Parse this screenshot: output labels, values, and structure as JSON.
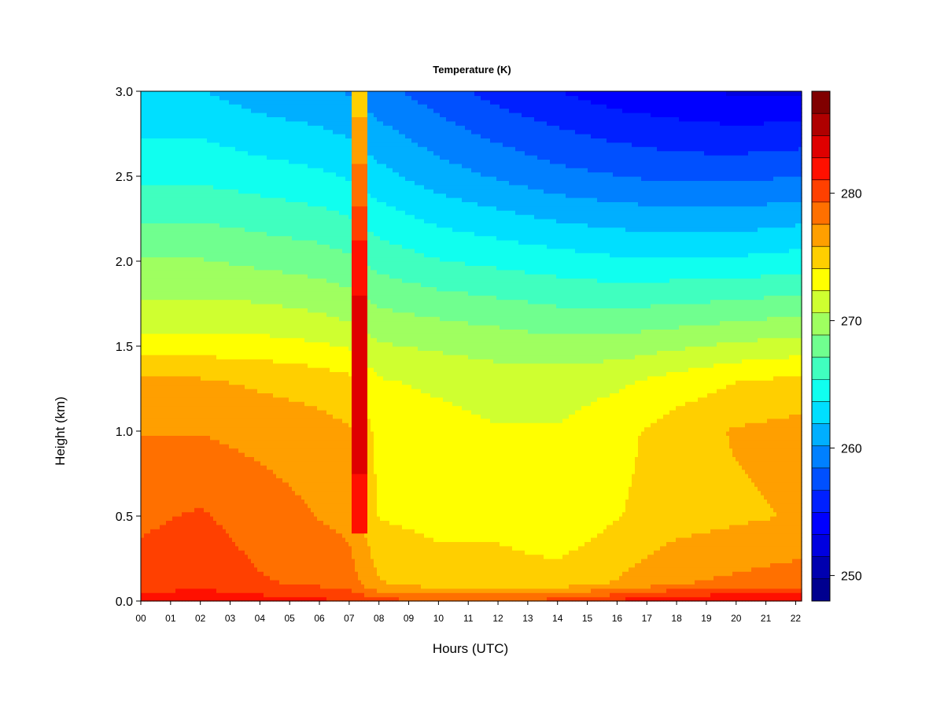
{
  "chart_data": {
    "type": "heatmap",
    "title": "Temperature (K)",
    "xlabel": "Hours (UTC)",
    "ylabel": "Height (km)",
    "x_ticks": [
      "00",
      "01",
      "02",
      "03",
      "04",
      "05",
      "06",
      "07",
      "08",
      "09",
      "10",
      "11",
      "12",
      "13",
      "14",
      "15",
      "16",
      "17",
      "18",
      "19",
      "20",
      "21",
      "22"
    ],
    "x_range": [
      0,
      22.2
    ],
    "y_ticks": [
      "0.0",
      "0.5",
      "1.0",
      "1.5",
      "2.0",
      "2.5",
      "3.0"
    ],
    "y_range": [
      0,
      3
    ],
    "colorbar": {
      "range": [
        248,
        288
      ],
      "step": 2,
      "ticks": [
        "250",
        "260",
        "270",
        "280"
      ],
      "colors": [
        "#00008F",
        "#0000AF",
        "#0000DF",
        "#0000FF",
        "#0020FF",
        "#0050FF",
        "#0080FF",
        "#00AFFF",
        "#00DFFF",
        "#10FFEF",
        "#40FFBF",
        "#70FF8F",
        "#9FFF60",
        "#CFFF30",
        "#FFFF00",
        "#FFCF00",
        "#FF9F00",
        "#FF7000",
        "#FF4000",
        "#FF1000",
        "#DF0000",
        "#AF0000",
        "#800000"
      ]
    },
    "profiles": [
      {
        "hour": 0,
        "t": [
          {
            "h": 0.0,
            "v": 282
          },
          {
            "h": 0.1,
            "v": 280
          },
          {
            "h": 0.5,
            "v": 279
          },
          {
            "h": 1.0,
            "v": 277.5
          },
          {
            "h": 1.3,
            "v": 276
          },
          {
            "h": 1.6,
            "v": 272
          },
          {
            "h": 2.0,
            "v": 269
          },
          {
            "h": 2.5,
            "v": 265
          },
          {
            "h": 3.0,
            "v": 262
          }
        ]
      },
      {
        "hour": 2,
        "t": [
          {
            "h": 0.0,
            "v": 282.5
          },
          {
            "h": 0.1,
            "v": 280.5
          },
          {
            "h": 0.5,
            "v": 279.5
          },
          {
            "h": 1.0,
            "v": 277.5
          },
          {
            "h": 1.3,
            "v": 276
          },
          {
            "h": 1.6,
            "v": 272
          },
          {
            "h": 2.0,
            "v": 269
          },
          {
            "h": 2.5,
            "v": 265
          },
          {
            "h": 3.0,
            "v": 262
          }
        ]
      },
      {
        "hour": 4,
        "t": [
          {
            "h": 0.0,
            "v": 282
          },
          {
            "h": 0.1,
            "v": 279.5
          },
          {
            "h": 0.5,
            "v": 278.5
          },
          {
            "h": 1.0,
            "v": 277
          },
          {
            "h": 1.3,
            "v": 275.5
          },
          {
            "h": 1.6,
            "v": 272
          },
          {
            "h": 2.0,
            "v": 268.5
          },
          {
            "h": 2.5,
            "v": 264.5
          },
          {
            "h": 3.0,
            "v": 261
          }
        ]
      },
      {
        "hour": 6,
        "t": [
          {
            "h": 0.0,
            "v": 281.5
          },
          {
            "h": 0.1,
            "v": 279
          },
          {
            "h": 0.5,
            "v": 277.5
          },
          {
            "h": 1.0,
            "v": 276.5
          },
          {
            "h": 1.3,
            "v": 275
          },
          {
            "h": 1.6,
            "v": 271.5
          },
          {
            "h": 2.0,
            "v": 268
          },
          {
            "h": 2.5,
            "v": 264
          },
          {
            "h": 3.0,
            "v": 260.5
          }
        ]
      },
      {
        "hour": 7,
        "t": [
          {
            "h": 0.0,
            "v": 281
          },
          {
            "h": 0.1,
            "v": 278.5
          },
          {
            "h": 0.5,
            "v": 277
          },
          {
            "h": 1.0,
            "v": 276
          },
          {
            "h": 1.3,
            "v": 274.5
          },
          {
            "h": 1.6,
            "v": 271
          },
          {
            "h": 2.0,
            "v": 267.5
          },
          {
            "h": 2.5,
            "v": 263.5
          },
          {
            "h": 3.0,
            "v": 260
          }
        ]
      },
      {
        "hour": 8,
        "t": [
          {
            "h": 0.0,
            "v": 280
          },
          {
            "h": 0.1,
            "v": 276
          },
          {
            "h": 0.5,
            "v": 274
          },
          {
            "h": 1.0,
            "v": 273.5
          },
          {
            "h": 1.3,
            "v": 272.5
          },
          {
            "h": 1.6,
            "v": 270
          },
          {
            "h": 2.0,
            "v": 266.5
          },
          {
            "h": 2.5,
            "v": 262.5
          },
          {
            "h": 3.0,
            "v": 259
          }
        ]
      },
      {
        "hour": 10,
        "t": [
          {
            "h": 0.0,
            "v": 279.5
          },
          {
            "h": 0.1,
            "v": 275
          },
          {
            "h": 0.5,
            "v": 273.5
          },
          {
            "h": 1.0,
            "v": 273
          },
          {
            "h": 1.3,
            "v": 272
          },
          {
            "h": 1.6,
            "v": 269.5
          },
          {
            "h": 2.0,
            "v": 265.5
          },
          {
            "h": 2.5,
            "v": 261
          },
          {
            "h": 3.0,
            "v": 257.5
          }
        ]
      },
      {
        "hour": 12,
        "t": [
          {
            "h": 0.0,
            "v": 279.5
          },
          {
            "h": 0.1,
            "v": 275
          },
          {
            "h": 0.5,
            "v": 273.5
          },
          {
            "h": 1.0,
            "v": 272.5
          },
          {
            "h": 1.3,
            "v": 271.5
          },
          {
            "h": 1.6,
            "v": 269
          },
          {
            "h": 2.0,
            "v": 265
          },
          {
            "h": 2.5,
            "v": 260
          },
          {
            "h": 3.0,
            "v": 256
          }
        ]
      },
      {
        "hour": 14,
        "t": [
          {
            "h": 0.0,
            "v": 280
          },
          {
            "h": 0.1,
            "v": 275
          },
          {
            "h": 0.5,
            "v": 272.5
          },
          {
            "h": 1.0,
            "v": 272.5
          },
          {
            "h": 1.3,
            "v": 271.5
          },
          {
            "h": 1.6,
            "v": 268.5
          },
          {
            "h": 2.0,
            "v": 264.5
          },
          {
            "h": 2.5,
            "v": 259
          },
          {
            "h": 3.0,
            "v": 255
          }
        ]
      },
      {
        "hour": 16,
        "t": [
          {
            "h": 0.0,
            "v": 281.5
          },
          {
            "h": 0.1,
            "v": 276
          },
          {
            "h": 0.5,
            "v": 274
          },
          {
            "h": 1.0,
            "v": 273.5
          },
          {
            "h": 1.3,
            "v": 272
          },
          {
            "h": 1.6,
            "v": 268.5
          },
          {
            "h": 2.0,
            "v": 264
          },
          {
            "h": 2.5,
            "v": 258.5
          },
          {
            "h": 3.0,
            "v": 254
          }
        ]
      },
      {
        "hour": 18,
        "t": [
          {
            "h": 0.0,
            "v": 283
          },
          {
            "h": 0.1,
            "v": 277.5
          },
          {
            "h": 0.5,
            "v": 275
          },
          {
            "h": 1.0,
            "v": 275
          },
          {
            "h": 1.3,
            "v": 273
          },
          {
            "h": 1.6,
            "v": 269
          },
          {
            "h": 2.0,
            "v": 264
          },
          {
            "h": 2.5,
            "v": 258
          },
          {
            "h": 3.0,
            "v": 253.5
          }
        ]
      },
      {
        "hour": 20,
        "t": [
          {
            "h": 0.0,
            "v": 283
          },
          {
            "h": 0.1,
            "v": 278
          },
          {
            "h": 0.5,
            "v": 275.5
          },
          {
            "h": 1.0,
            "v": 276
          },
          {
            "h": 1.3,
            "v": 274
          },
          {
            "h": 1.6,
            "v": 269.5
          },
          {
            "h": 2.0,
            "v": 264
          },
          {
            "h": 2.5,
            "v": 258
          },
          {
            "h": 3.0,
            "v": 253
          }
        ]
      },
      {
        "hour": 22.2,
        "t": [
          {
            "h": 0.0,
            "v": 283
          },
          {
            "h": 0.1,
            "v": 278.5
          },
          {
            "h": 0.5,
            "v": 276
          },
          {
            "h": 1.0,
            "v": 276.5
          },
          {
            "h": 1.3,
            "v": 274.5
          },
          {
            "h": 1.6,
            "v": 270
          },
          {
            "h": 2.0,
            "v": 264.5
          },
          {
            "h": 2.5,
            "v": 258.5
          },
          {
            "h": 3.0,
            "v": 253
          }
        ]
      }
    ],
    "anomaly": {
      "hour_start": 7.1,
      "hour_end": 7.6,
      "height_bottom": 0.4,
      "values": [
        {
          "h": 0.4,
          "v": 281
        },
        {
          "h": 1.0,
          "v": 284
        },
        {
          "h": 1.5,
          "v": 284
        },
        {
          "h": 2.0,
          "v": 282
        },
        {
          "h": 2.5,
          "v": 278
        },
        {
          "h": 3.0,
          "v": 275
        }
      ]
    }
  }
}
